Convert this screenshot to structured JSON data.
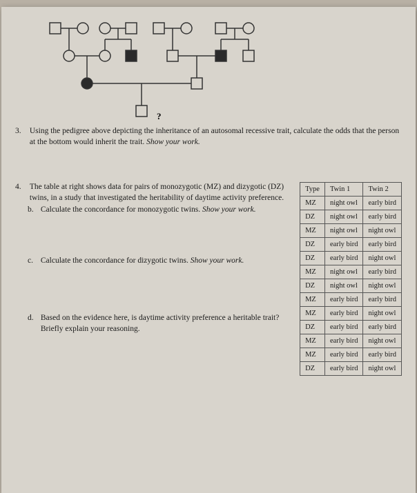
{
  "pedigree": {
    "question_mark": "?",
    "shapes": {
      "square_open": {
        "fill": "none",
        "stroke": "#333",
        "size": 16
      },
      "square_filled": {
        "fill": "#2a2a2a",
        "stroke": "#333",
        "size": 16
      },
      "circle_open": {
        "fill": "none",
        "stroke": "#333",
        "r": 8
      },
      "circle_filled": {
        "fill": "#2a2a2a",
        "stroke": "#333",
        "r": 8
      }
    }
  },
  "q3": {
    "number": "3.",
    "text_a": "Using the pedigree above depicting the inheritance of an autosomal recessive trait, calculate the odds that the person at the bottom would inherit the trait. ",
    "text_b_italic": "Show your work."
  },
  "q4": {
    "number": "4.",
    "intro": "The table at right shows data for pairs of monozygotic (MZ) and dizygotic (DZ) twins, in a study that investigated the heritability of daytime activity preference.",
    "b": {
      "label": "b.",
      "text": "Calculate the concordance for monozygotic twins. ",
      "italic": "Show your work."
    },
    "c": {
      "label": "c.",
      "text": "Calculate the concordance for dizygotic twins. ",
      "italic": "Show your work."
    },
    "d": {
      "label": "d.",
      "text": "Based on the evidence here, is daytime activity preference a heritable trait? Briefly explain your reasoning."
    }
  },
  "table": {
    "headers": [
      "Type",
      "Twin 1",
      "Twin 2"
    ],
    "rows": [
      [
        "MZ",
        "night owl",
        "early bird"
      ],
      [
        "DZ",
        "night owl",
        "early bird"
      ],
      [
        "MZ",
        "night owl",
        "night owl"
      ],
      [
        "DZ",
        "early bird",
        "early bird"
      ],
      [
        "DZ",
        "early bird",
        "night owl"
      ],
      [
        "MZ",
        "night owl",
        "early bird"
      ],
      [
        "DZ",
        "night owl",
        "night owl"
      ],
      [
        "MZ",
        "early bird",
        "early bird"
      ],
      [
        "MZ",
        "early bird",
        "night owl"
      ],
      [
        "DZ",
        "early bird",
        "early bird"
      ],
      [
        "MZ",
        "early bird",
        "night owl"
      ],
      [
        "MZ",
        "early bird",
        "early bird"
      ],
      [
        "DZ",
        "early bird",
        "night owl"
      ]
    ]
  }
}
